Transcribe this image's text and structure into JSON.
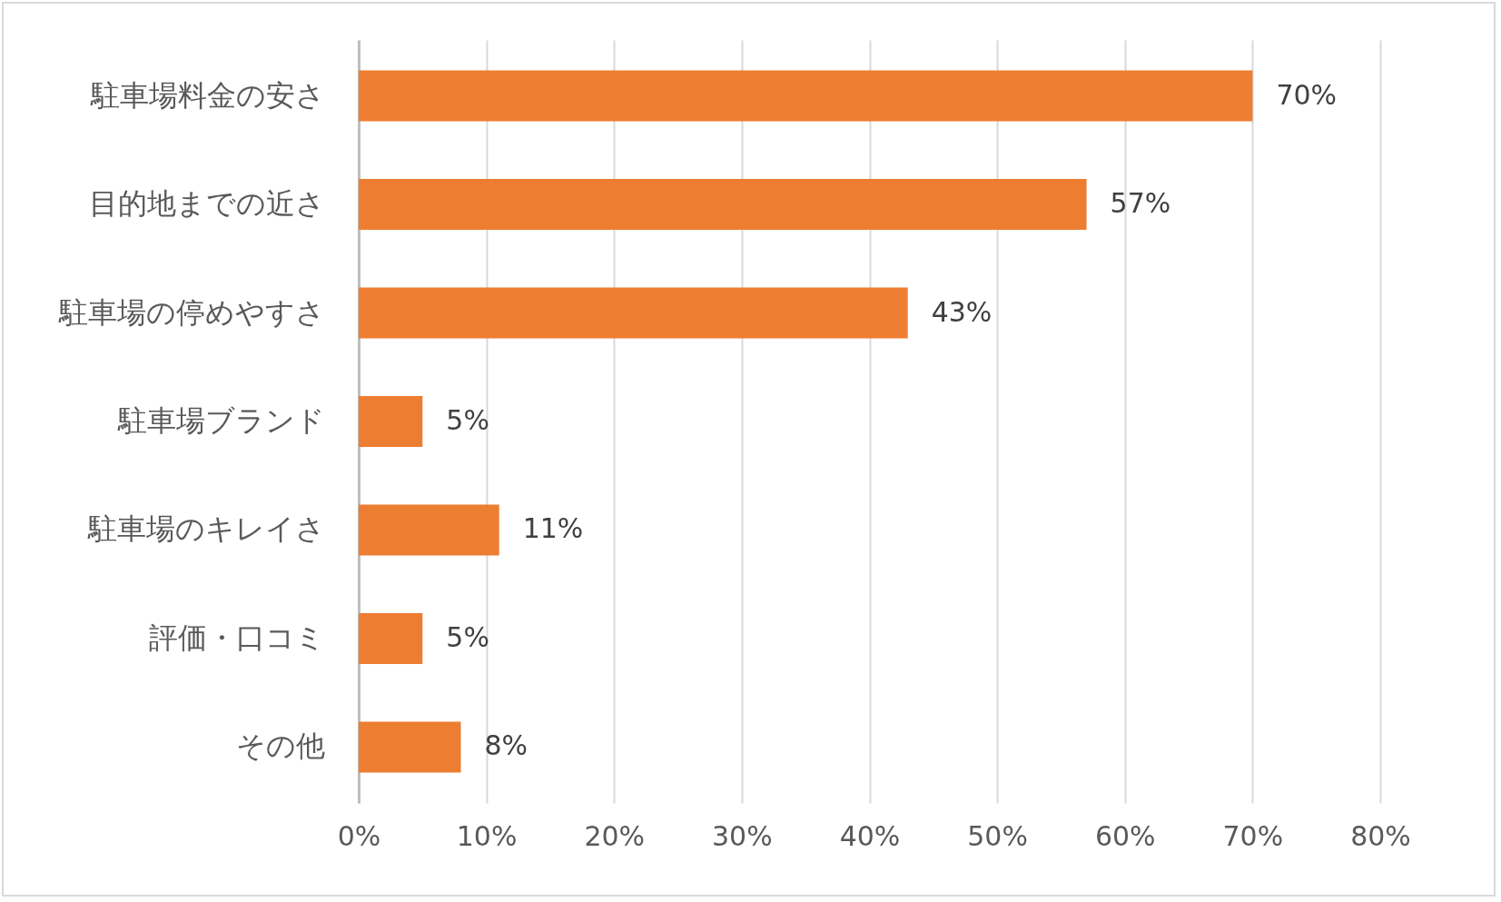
{
  "chart_data": {
    "type": "bar",
    "orientation": "horizontal",
    "categories": [
      "駐車場料金の安さ",
      "目的地までの近さ",
      "駐車場の停めやすさ",
      "駐車場ブランド",
      "駐車場のキレイさ",
      "評価・口コミ",
      "その他"
    ],
    "values": [
      70,
      57,
      43,
      5,
      11,
      5,
      8
    ],
    "value_labels": [
      "70%",
      "57%",
      "43%",
      "5%",
      "11%",
      "5%",
      "8%"
    ],
    "color": "#ed7d31",
    "xlim": [
      0,
      80
    ],
    "xticks": [
      {
        "value": 0,
        "label": "0%"
      },
      {
        "value": 10,
        "label": "10%"
      },
      {
        "value": 20,
        "label": "20%"
      },
      {
        "value": 30,
        "label": "30%"
      },
      {
        "value": 40,
        "label": "40%"
      },
      {
        "value": 50,
        "label": "50%"
      },
      {
        "value": 60,
        "label": "60%"
      },
      {
        "value": 70,
        "label": "70%"
      },
      {
        "value": 80,
        "label": "80%"
      }
    ],
    "grid": "x"
  }
}
